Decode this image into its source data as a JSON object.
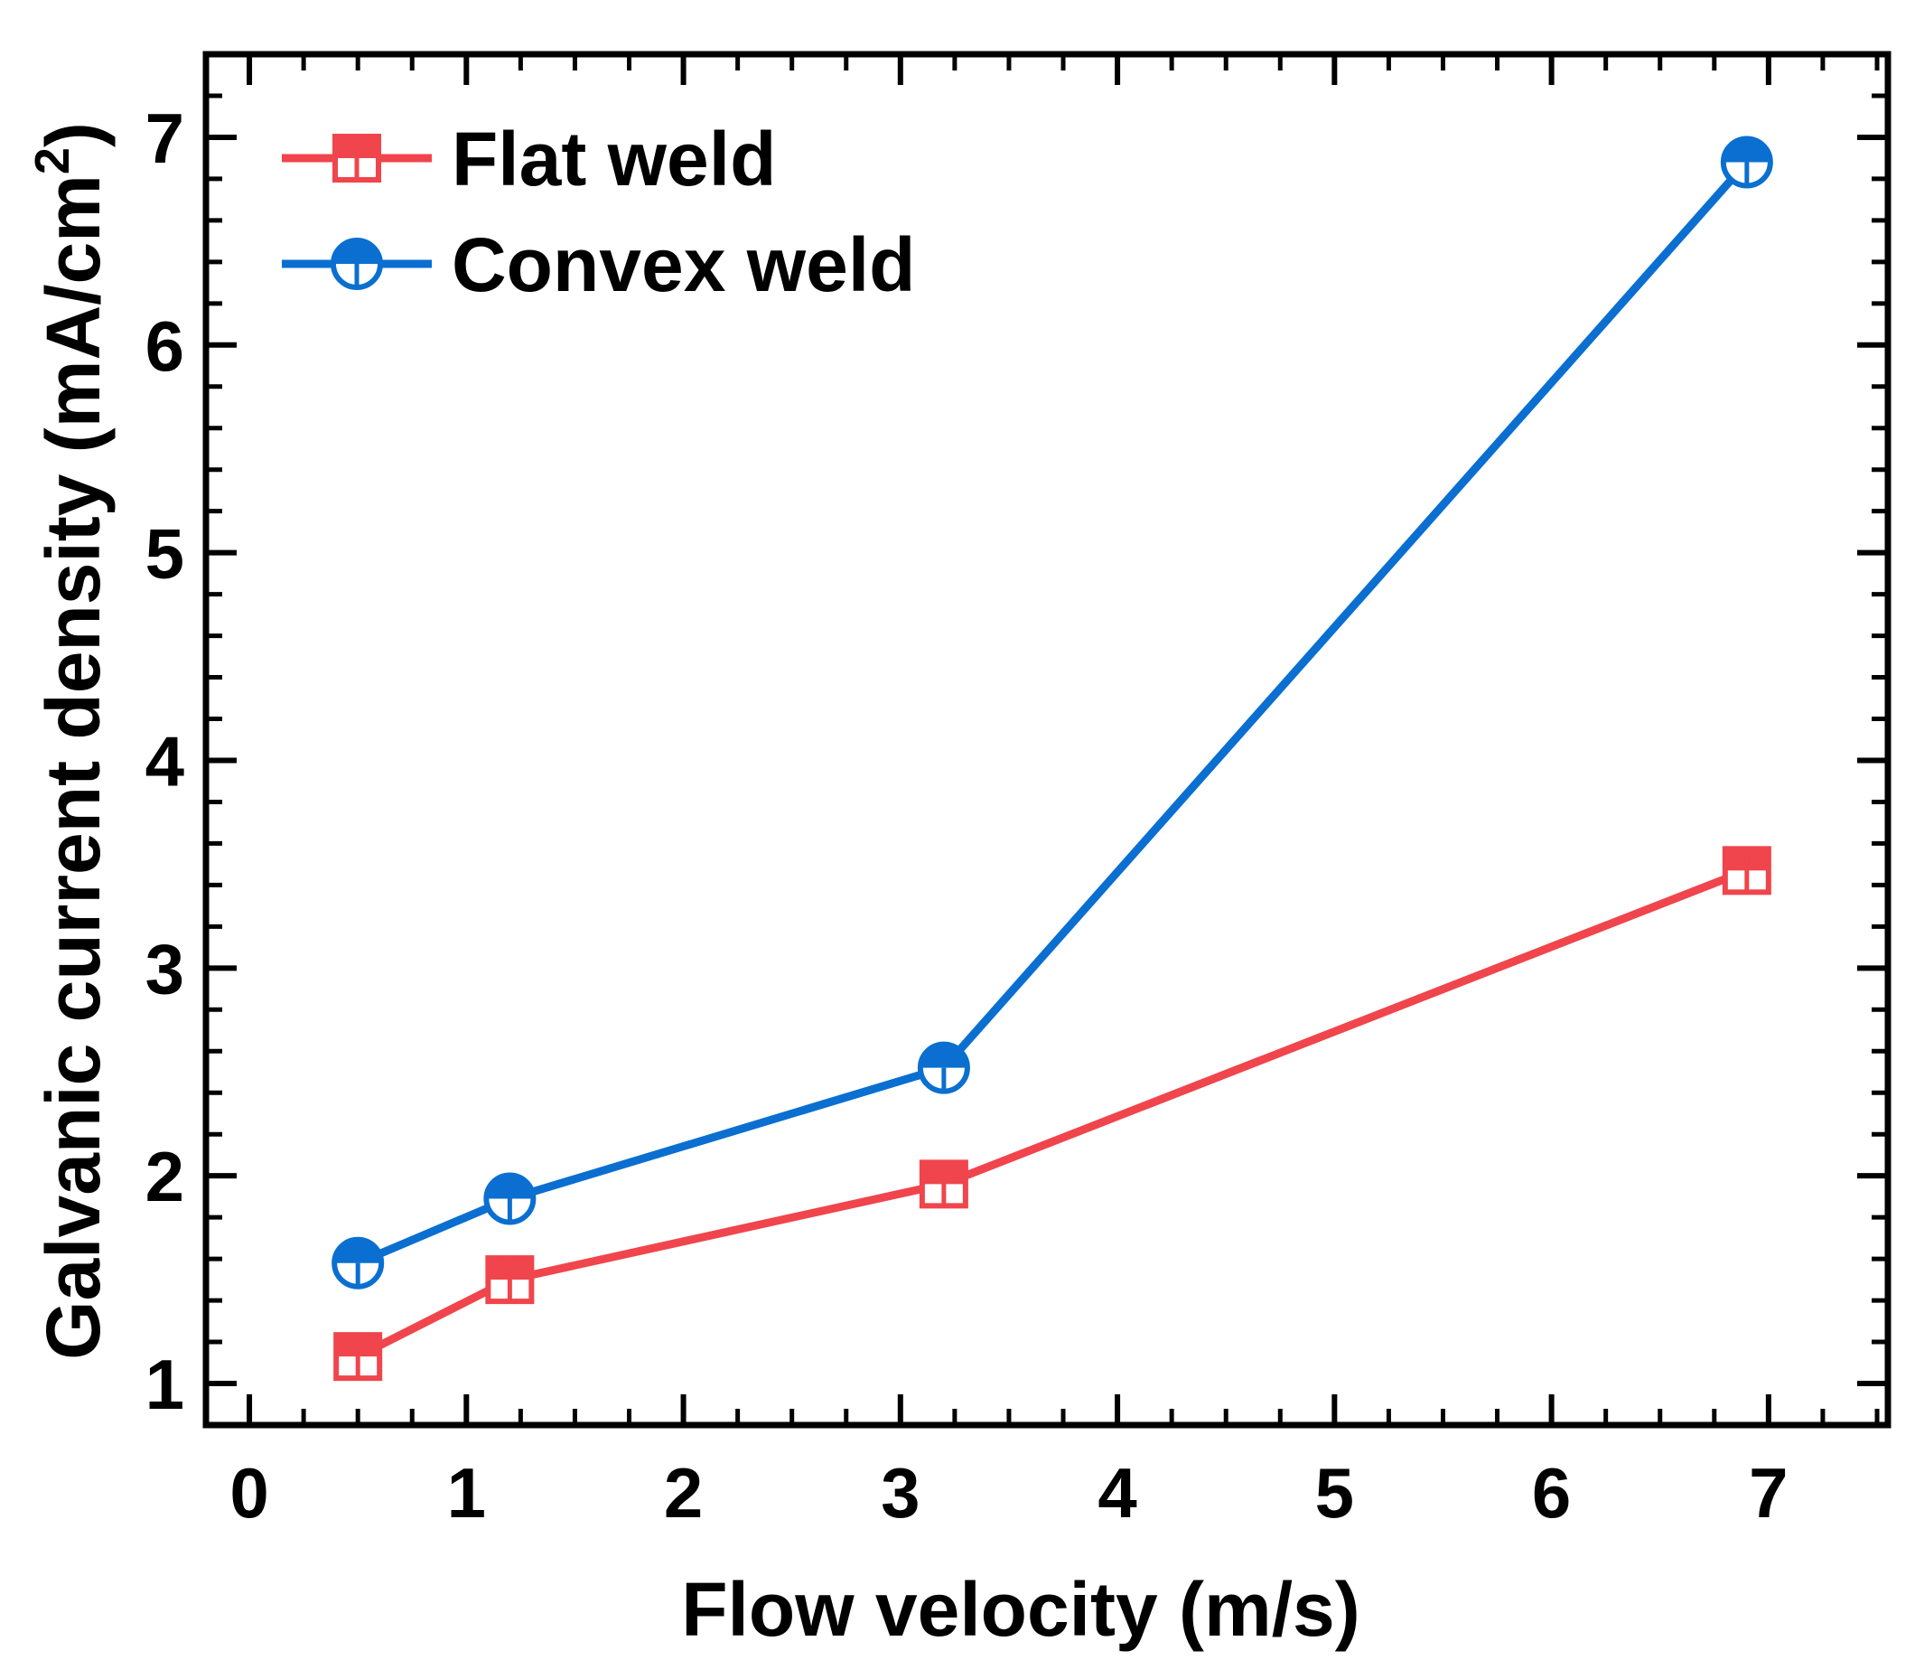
{
  "chart_data": {
    "type": "line",
    "title": "",
    "xlabel": "Flow velocity (m/s)",
    "ylabel_main": "Galvanic current density (mA/cm",
    "ylabel_sup": "2",
    "ylabel_end": ")",
    "xlim": [
      -0.2,
      7.55
    ],
    "ylim": [
      0.8,
      7.4
    ],
    "xticks": [
      0,
      1,
      2,
      3,
      4,
      5,
      6,
      7
    ],
    "yticks": [
      1,
      2,
      3,
      4,
      5,
      6,
      7
    ],
    "legend_position": "top-left",
    "series": [
      {
        "name": "Flat weld",
        "color": "#f0454c",
        "marker": "half-filled-square",
        "x": [
          0.5,
          1.2,
          3.2,
          6.9
        ],
        "y": [
          1.13,
          1.5,
          1.96,
          3.47
        ]
      },
      {
        "name": "Convex weld",
        "color": "#0a6fd0",
        "marker": "half-filled-circle",
        "x": [
          0.5,
          1.2,
          3.2,
          6.9
        ],
        "y": [
          1.58,
          1.89,
          2.52,
          6.88
        ]
      }
    ]
  }
}
